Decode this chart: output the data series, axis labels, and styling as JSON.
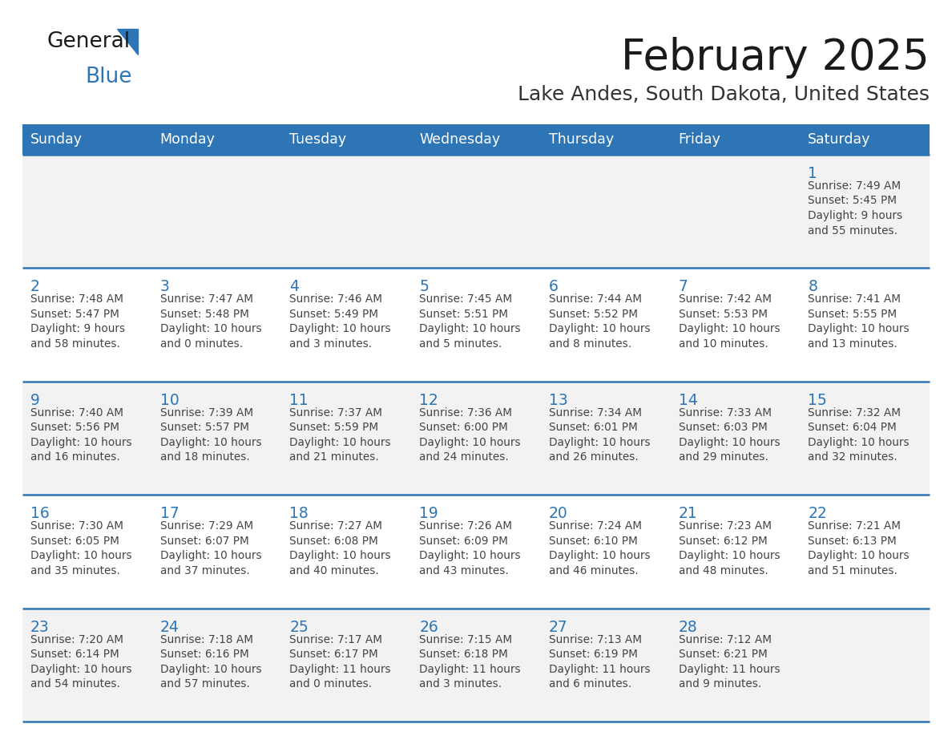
{
  "title": "February 2025",
  "subtitle": "Lake Andes, South Dakota, United States",
  "days_of_week": [
    "Sunday",
    "Monday",
    "Tuesday",
    "Wednesday",
    "Thursday",
    "Friday",
    "Saturday"
  ],
  "header_bg": "#2E75B6",
  "header_text": "#FFFFFF",
  "row_bg_light": "#F2F2F2",
  "row_bg_white": "#FFFFFF",
  "separator_color": "#2E75B6",
  "day_number_color": "#2E75B6",
  "cell_text_color": "#444444",
  "title_color": "#1a1a1a",
  "subtitle_color": "#333333",
  "logo_general_color": "#1a1a1a",
  "logo_blue_color": "#2E75B6",
  "row_backgrounds": [
    "light",
    "white",
    "light",
    "white",
    "light"
  ],
  "calendar_data": [
    [
      null,
      null,
      null,
      null,
      null,
      null,
      {
        "day": 1,
        "sunrise": "7:49 AM",
        "sunset": "5:45 PM",
        "daylight": "9 hours",
        "daylight2": "and 55 minutes."
      }
    ],
    [
      {
        "day": 2,
        "sunrise": "7:48 AM",
        "sunset": "5:47 PM",
        "daylight": "9 hours",
        "daylight2": "and 58 minutes."
      },
      {
        "day": 3,
        "sunrise": "7:47 AM",
        "sunset": "5:48 PM",
        "daylight": "10 hours",
        "daylight2": "and 0 minutes."
      },
      {
        "day": 4,
        "sunrise": "7:46 AM",
        "sunset": "5:49 PM",
        "daylight": "10 hours",
        "daylight2": "and 3 minutes."
      },
      {
        "day": 5,
        "sunrise": "7:45 AM",
        "sunset": "5:51 PM",
        "daylight": "10 hours",
        "daylight2": "and 5 minutes."
      },
      {
        "day": 6,
        "sunrise": "7:44 AM",
        "sunset": "5:52 PM",
        "daylight": "10 hours",
        "daylight2": "and 8 minutes."
      },
      {
        "day": 7,
        "sunrise": "7:42 AM",
        "sunset": "5:53 PM",
        "daylight": "10 hours",
        "daylight2": "and 10 minutes."
      },
      {
        "day": 8,
        "sunrise": "7:41 AM",
        "sunset": "5:55 PM",
        "daylight": "10 hours",
        "daylight2": "and 13 minutes."
      }
    ],
    [
      {
        "day": 9,
        "sunrise": "7:40 AM",
        "sunset": "5:56 PM",
        "daylight": "10 hours",
        "daylight2": "and 16 minutes."
      },
      {
        "day": 10,
        "sunrise": "7:39 AM",
        "sunset": "5:57 PM",
        "daylight": "10 hours",
        "daylight2": "and 18 minutes."
      },
      {
        "day": 11,
        "sunrise": "7:37 AM",
        "sunset": "5:59 PM",
        "daylight": "10 hours",
        "daylight2": "and 21 minutes."
      },
      {
        "day": 12,
        "sunrise": "7:36 AM",
        "sunset": "6:00 PM",
        "daylight": "10 hours",
        "daylight2": "and 24 minutes."
      },
      {
        "day": 13,
        "sunrise": "7:34 AM",
        "sunset": "6:01 PM",
        "daylight": "10 hours",
        "daylight2": "and 26 minutes."
      },
      {
        "day": 14,
        "sunrise": "7:33 AM",
        "sunset": "6:03 PM",
        "daylight": "10 hours",
        "daylight2": "and 29 minutes."
      },
      {
        "day": 15,
        "sunrise": "7:32 AM",
        "sunset": "6:04 PM",
        "daylight": "10 hours",
        "daylight2": "and 32 minutes."
      }
    ],
    [
      {
        "day": 16,
        "sunrise": "7:30 AM",
        "sunset": "6:05 PM",
        "daylight": "10 hours",
        "daylight2": "and 35 minutes."
      },
      {
        "day": 17,
        "sunrise": "7:29 AM",
        "sunset": "6:07 PM",
        "daylight": "10 hours",
        "daylight2": "and 37 minutes."
      },
      {
        "day": 18,
        "sunrise": "7:27 AM",
        "sunset": "6:08 PM",
        "daylight": "10 hours",
        "daylight2": "and 40 minutes."
      },
      {
        "day": 19,
        "sunrise": "7:26 AM",
        "sunset": "6:09 PM",
        "daylight": "10 hours",
        "daylight2": "and 43 minutes."
      },
      {
        "day": 20,
        "sunrise": "7:24 AM",
        "sunset": "6:10 PM",
        "daylight": "10 hours",
        "daylight2": "and 46 minutes."
      },
      {
        "day": 21,
        "sunrise": "7:23 AM",
        "sunset": "6:12 PM",
        "daylight": "10 hours",
        "daylight2": "and 48 minutes."
      },
      {
        "day": 22,
        "sunrise": "7:21 AM",
        "sunset": "6:13 PM",
        "daylight": "10 hours",
        "daylight2": "and 51 minutes."
      }
    ],
    [
      {
        "day": 23,
        "sunrise": "7:20 AM",
        "sunset": "6:14 PM",
        "daylight": "10 hours",
        "daylight2": "and 54 minutes."
      },
      {
        "day": 24,
        "sunrise": "7:18 AM",
        "sunset": "6:16 PM",
        "daylight": "10 hours",
        "daylight2": "and 57 minutes."
      },
      {
        "day": 25,
        "sunrise": "7:17 AM",
        "sunset": "6:17 PM",
        "daylight": "11 hours",
        "daylight2": "and 0 minutes."
      },
      {
        "day": 26,
        "sunrise": "7:15 AM",
        "sunset": "6:18 PM",
        "daylight": "11 hours",
        "daylight2": "and 3 minutes."
      },
      {
        "day": 27,
        "sunrise": "7:13 AM",
        "sunset": "6:19 PM",
        "daylight": "11 hours",
        "daylight2": "and 6 minutes."
      },
      {
        "day": 28,
        "sunrise": "7:12 AM",
        "sunset": "6:21 PM",
        "daylight": "11 hours",
        "daylight2": "and 9 minutes."
      },
      null
    ]
  ]
}
